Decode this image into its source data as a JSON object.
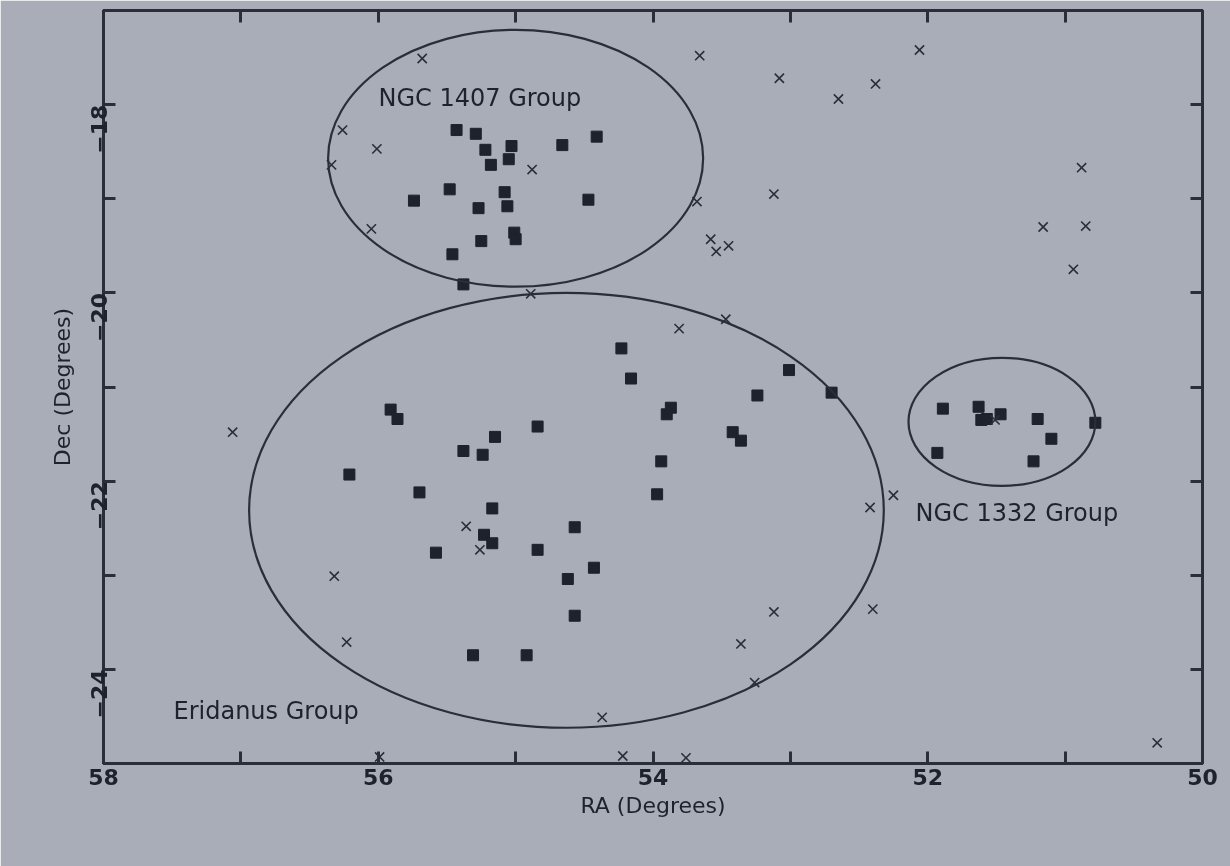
{
  "chart_data": {
    "type": "scatter",
    "xlabel": "RA (Degrees)",
    "ylabel": "Dec (Degrees)",
    "xlim": [
      58,
      50
    ],
    "ylim": [
      -25,
      -17
    ],
    "xticks": [
      58,
      {
        "value": 57,
        "label": null
      },
      56,
      {
        "value": 55,
        "label": null
      },
      54,
      {
        "value": 53,
        "label": null
      },
      52,
      {
        "value": 51,
        "label": null
      },
      50
    ],
    "yticks": [
      {
        "value": -25,
        "label": null
      },
      {
        "value": -24,
        "label": "−24"
      },
      {
        "value": -23,
        "label": null
      },
      {
        "value": -22,
        "label": "−22"
      },
      {
        "value": -21,
        "label": null
      },
      {
        "value": -20,
        "label": "−20"
      },
      {
        "value": -19,
        "label": null
      },
      {
        "value": -18,
        "label": "−18"
      },
      {
        "value": -17,
        "label": null
      }
    ],
    "grid": false,
    "annotations": [
      "NGC 1407 Group",
      "Eridanus Group",
      "NGC 1332 Group"
    ],
    "series": [
      {
        "marker": "square",
        "color": "#1e222c",
        "x": [
          55.43,
          55.29,
          55.48,
          55.74,
          55.27,
          55.25,
          55.46,
          55.38,
          55.22,
          55.18,
          55.03,
          55.05,
          54.66,
          54.41,
          55.08,
          55.06,
          54.47,
          55.01,
          55.0,
          54.23,
          54.16,
          53.01,
          52.7,
          55.91,
          55.86,
          55.38,
          56.21,
          55.7,
          55.58,
          55.31,
          55.15,
          55.24,
          54.84,
          55.17,
          55.23,
          55.17,
          54.84,
          54.57,
          54.43,
          54.62,
          54.57,
          54.92,
          53.87,
          53.9,
          53.94,
          53.97,
          53.24,
          53.42,
          53.36,
          51.89,
          51.63,
          51.61,
          51.57,
          51.47,
          51.2,
          51.1,
          50.78,
          51.93,
          51.23
        ],
        "values": [
          -18.27,
          -18.31,
          -18.9,
          -19.02,
          -19.1,
          -19.45,
          -19.59,
          -19.91,
          -18.48,
          -18.64,
          -18.44,
          -18.58,
          -18.43,
          -18.34,
          -18.93,
          -19.08,
          -19.01,
          -19.36,
          -19.43,
          -20.59,
          -20.91,
          -20.82,
          -21.06,
          -21.24,
          -21.34,
          -21.68,
          -21.93,
          -22.12,
          -22.76,
          -23.85,
          -21.53,
          -21.72,
          -21.42,
          -22.29,
          -22.57,
          -22.66,
          -22.73,
          -22.49,
          -22.92,
          -23.04,
          -23.43,
          -23.85,
          -21.22,
          -21.29,
          -21.79,
          -22.14,
          -21.09,
          -21.48,
          -21.57,
          -21.23,
          -21.21,
          -21.35,
          -21.34,
          -21.29,
          -21.34,
          -21.55,
          -21.38,
          -21.7,
          -21.79
        ]
      },
      {
        "marker": "cross",
        "color": "#2a2e38",
        "x": [
          55.68,
          56.26,
          56.01,
          56.34,
          56.05,
          54.88,
          54.89,
          53.66,
          53.08,
          52.65,
          53.68,
          53.12,
          53.58,
          53.54,
          53.45,
          53.81,
          53.47,
          52.38,
          52.06,
          50.88,
          51.16,
          50.85,
          50.94,
          57.06,
          56.32,
          56.23,
          55.99,
          55.36,
          55.26,
          54.37,
          54.22,
          53.76,
          53.12,
          53.36,
          53.26,
          52.25,
          52.42,
          52.4,
          50.33,
          51.51
        ],
        "values": [
          -17.51,
          -18.27,
          -18.47,
          -18.64,
          -19.32,
          -18.69,
          -20.01,
          -17.48,
          -17.72,
          -17.94,
          -19.03,
          -18.95,
          -19.43,
          -19.56,
          -19.5,
          -20.38,
          -20.28,
          -17.78,
          -17.42,
          -18.67,
          -19.3,
          -19.29,
          -19.75,
          -21.48,
          -23.01,
          -23.71,
          -24.93,
          -22.48,
          -22.73,
          -24.51,
          -24.92,
          -24.94,
          -23.39,
          -23.73,
          -24.14,
          -22.15,
          -22.28,
          -23.36,
          -24.78,
          -21.35
        ]
      }
    ]
  }
}
